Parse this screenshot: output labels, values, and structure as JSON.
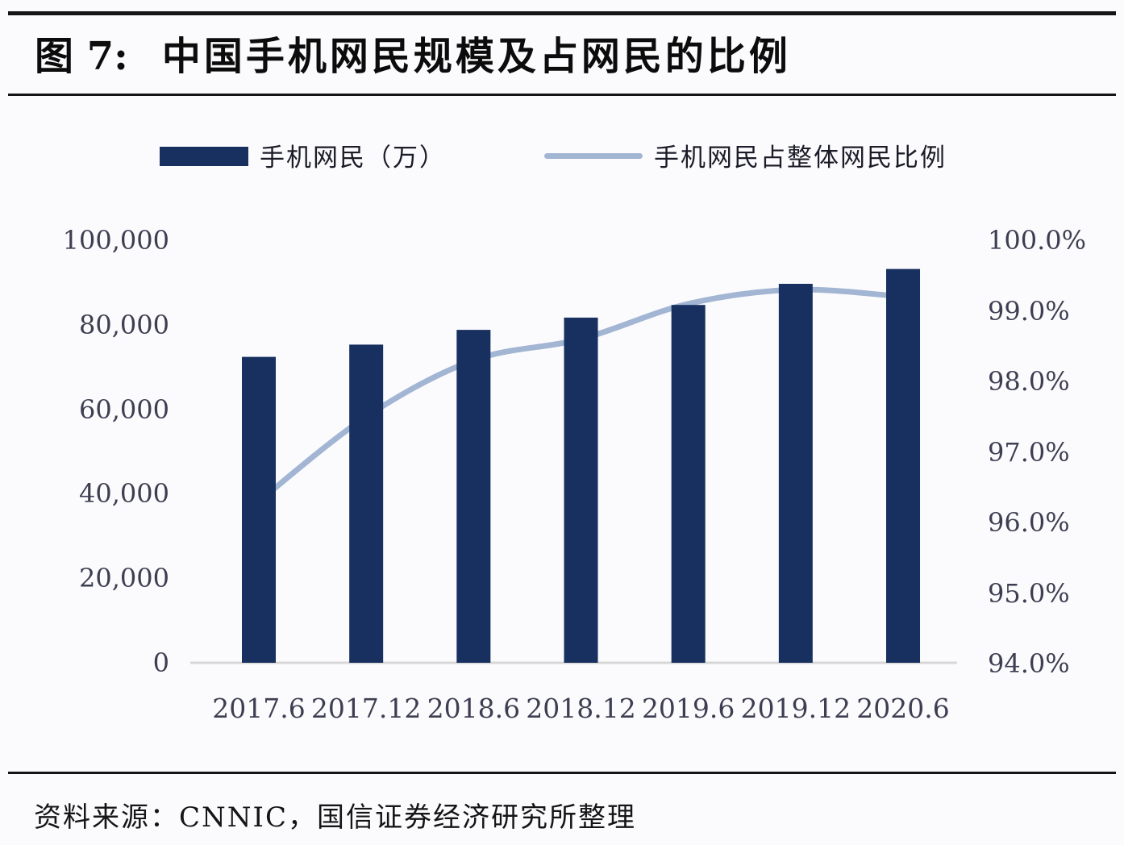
{
  "page": {
    "figure_label": "图 7:",
    "title": "中国手机网民规模及占网民的比例",
    "source_text": "资料来源：CNNIC，国信证券经济研究所整理"
  },
  "legend": {
    "bar_label": "手机网民（万）",
    "line_label": "手机网民占整体网民比例"
  },
  "colors": {
    "bar": "#17305f",
    "line": "#a2b5d3",
    "axis_text": "#3e3e52",
    "baseline": "#d7d7d7",
    "rule": "#141414",
    "background": "#fbfbfd"
  },
  "chart_data": {
    "type": "bar",
    "title": "中国手机网民规模及占网民的比例",
    "categories": [
      "2017.6",
      "2017.12",
      "2018.6",
      "2018.12",
      "2019.6",
      "2019.12",
      "2020.6"
    ],
    "series": [
      {
        "name": "手机网民（万）",
        "type": "bar",
        "axis": "left",
        "values": [
          72400,
          75300,
          78800,
          81700,
          84700,
          89700,
          93200
        ]
      },
      {
        "name": "手机网民占整体网民比例",
        "type": "line",
        "axis": "right",
        "values": [
          96.3,
          97.5,
          98.3,
          98.6,
          99.1,
          99.3,
          99.2
        ]
      }
    ],
    "left_axis": {
      "min": 0,
      "max": 100000,
      "ticks": [
        {
          "label": "0",
          "value": 0
        },
        {
          "label": "20,000",
          "value": 20000
        },
        {
          "label": "40,000",
          "value": 40000
        },
        {
          "label": "60,000",
          "value": 60000
        },
        {
          "label": "80,000",
          "value": 80000
        },
        {
          "label": "100,000",
          "value": 100000
        }
      ]
    },
    "right_axis": {
      "min": 94,
      "max": 100,
      "ticks": [
        {
          "label": "94.0%",
          "value": 94
        },
        {
          "label": "95.0%",
          "value": 95
        },
        {
          "label": "96.0%",
          "value": 96
        },
        {
          "label": "97.0%",
          "value": 97
        },
        {
          "label": "98.0%",
          "value": 98
        },
        {
          "label": "99.0%",
          "value": 99
        },
        {
          "label": "100.0%",
          "value": 100
        }
      ]
    },
    "legend_position": "top",
    "grid": false
  }
}
